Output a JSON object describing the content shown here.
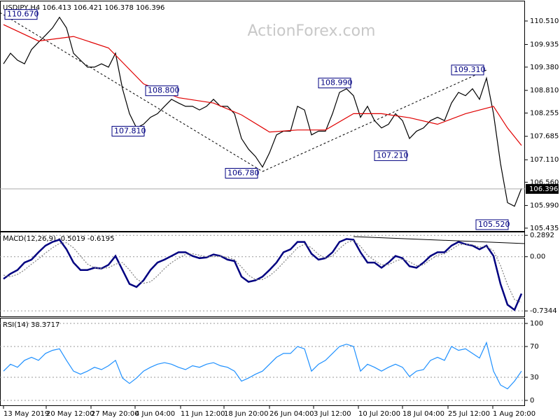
{
  "watermark": "ActionForex.com",
  "chart_data": [
    {
      "type": "line",
      "title": "USDJPY,H4  106.413 106.421 106.378 106.396",
      "xlim": [
        -0.5,
        74.5
      ],
      "ylim": [
        105.365,
        110.99
      ],
      "yticks": [
        {
          "value": 110.51,
          "label": "110.510"
        },
        109.935,
        {
          "value": 109.38,
          "label": "109.380"
        },
        {
          "value": 108.81,
          "label": "108.810"
        },
        108.255,
        107.685,
        {
          "value": 107.11,
          "label": "107.110"
        },
        {
          "value": 106.56,
          "label": "106.560"
        },
        {
          "value": 105.99,
          "label": "105.990"
        },
        105.435
      ],
      "grid": false,
      "series": [
        {
          "color": "#000000",
          "values": [
            109.46,
            109.72,
            109.55,
            109.46,
            109.81,
            109.99,
            110.16,
            110.34,
            110.6,
            110.34,
            109.72,
            109.55,
            109.38,
            109.38,
            109.46,
            109.38,
            109.72,
            108.85,
            108.24,
            107.89,
            107.98,
            108.15,
            108.24,
            108.42,
            108.59,
            108.5,
            108.42,
            108.42,
            108.33,
            108.42,
            108.59,
            108.42,
            108.42,
            108.24,
            107.63,
            107.37,
            107.19,
            106.93,
            107.28,
            107.72,
            107.81,
            107.81,
            108.42,
            108.33,
            107.72,
            107.81,
            107.81,
            108.24,
            108.76,
            108.85,
            108.68,
            108.15,
            108.42,
            108.07,
            107.89,
            107.98,
            108.24,
            108.07,
            107.63,
            107.81,
            107.89,
            108.07,
            108.15,
            108.07,
            108.5,
            108.76,
            108.68,
            108.85,
            108.59,
            109.11,
            108.24,
            107.02,
            106.06,
            105.97,
            106.41
          ]
        },
        {
          "color": "#e00000",
          "x": [
            0,
            5,
            10,
            15,
            20,
            25,
            30,
            34,
            38,
            42,
            46,
            50,
            54,
            58,
            62,
            66,
            70,
            72,
            74
          ],
          "values": [
            110.42,
            110.02,
            110.13,
            109.85,
            108.97,
            108.63,
            108.5,
            108.21,
            107.79,
            107.84,
            107.84,
            108.24,
            108.24,
            108.14,
            107.98,
            108.24,
            108.42,
            107.89,
            107.46
          ]
        }
      ],
      "last_price": 106.396,
      "annotations": [
        {
          "value": 110.67,
          "label": "110.670",
          "x": 0.2
        },
        {
          "value": 108.8,
          "label": "108.800",
          "x": 20.3
        },
        {
          "value": 107.81,
          "label": "107.810",
          "x": 15.5
        },
        {
          "value": 106.78,
          "label": "106.780",
          "x": 31.7
        },
        {
          "value": 108.99,
          "label": "108.990",
          "x": 45
        },
        {
          "value": 107.21,
          "label": "107.210",
          "x": 53
        },
        {
          "value": 109.31,
          "label": "109.310",
          "x": 64
        },
        {
          "value": 105.52,
          "label": "105.520",
          "x": 67.5
        }
      ]
    },
    {
      "type": "line",
      "title": "MACD(12,26,9) -0.5019 -0.6195",
      "xlim": [
        -0.5,
        74.5
      ],
      "ylim": [
        -0.818,
        0.329
      ],
      "yticks": [
        0.2892,
        {
          "value": 0,
          "label": "0.00"
        },
        -0.7344
      ],
      "grid": true,
      "series": [
        {
          "color": "#000080",
          "values": [
            -0.3,
            -0.23,
            -0.18,
            -0.08,
            -0.04,
            0.06,
            0.15,
            0.2,
            0.23,
            0.1,
            -0.08,
            -0.18,
            -0.18,
            -0.15,
            -0.16,
            -0.11,
            0.01,
            -0.18,
            -0.37,
            -0.41,
            -0.32,
            -0.18,
            -0.08,
            -0.04,
            0.01,
            0.06,
            0.06,
            0.01,
            -0.02,
            -0.01,
            0.03,
            0.01,
            -0.04,
            -0.06,
            -0.27,
            -0.34,
            -0.32,
            -0.27,
            -0.18,
            -0.08,
            0.06,
            0.1,
            0.2,
            0.2,
            0.04,
            -0.04,
            -0.02,
            0.06,
            0.2,
            0.24,
            0.23,
            0.06,
            -0.08,
            -0.08,
            -0.15,
            -0.08,
            0.01,
            -0.02,
            -0.13,
            -0.15,
            -0.08,
            0.01,
            0.06,
            0.06,
            0.15,
            0.2,
            0.17,
            0.15,
            0.1,
            0.15,
            0.01,
            -0.37,
            -0.65,
            -0.72,
            -0.5
          ]
        },
        {
          "color": "#808080",
          "dashed": true,
          "values": [
            -0.25,
            -0.27,
            -0.24,
            -0.18,
            -0.1,
            -0.03,
            0.05,
            0.12,
            0.18,
            0.19,
            0.12,
            0.01,
            -0.1,
            -0.15,
            -0.16,
            -0.15,
            -0.1,
            -0.08,
            -0.18,
            -0.3,
            -0.36,
            -0.34,
            -0.26,
            -0.16,
            -0.08,
            -0.02,
            0.03,
            0.04,
            0.02,
            0,
            0,
            0.01,
            -0.01,
            -0.04,
            -0.14,
            -0.25,
            -0.31,
            -0.31,
            -0.26,
            -0.18,
            -0.08,
            0.02,
            0.12,
            0.17,
            0.12,
            0.03,
            -0.02,
            0.01,
            0.11,
            0.19,
            0.22,
            0.14,
            0.02,
            -0.05,
            -0.11,
            -0.11,
            -0.06,
            -0.03,
            -0.07,
            -0.12,
            -0.11,
            -0.04,
            0.02,
            0.04,
            0.1,
            0.16,
            0.17,
            0.16,
            0.13,
            0.14,
            0.08,
            -0.12,
            -0.38,
            -0.58,
            -0.62
          ]
        }
      ]
    },
    {
      "type": "line",
      "title": "RSI(14) 38.3717",
      "xlim": [
        -0.5,
        74.5
      ],
      "ylim": [
        -7.3,
        106.4
      ],
      "yticks": [
        100,
        70,
        30,
        0
      ],
      "grid": true,
      "series": [
        {
          "color": "#1e90ff",
          "values": [
            38,
            47,
            43,
            52,
            56,
            52,
            61,
            65,
            67,
            52,
            38,
            34,
            38,
            43,
            40,
            45,
            52,
            29,
            22,
            29,
            38,
            43,
            47,
            49,
            47,
            43,
            40,
            45,
            43,
            47,
            49,
            45,
            43,
            38,
            25,
            29,
            34,
            38,
            47,
            56,
            61,
            61,
            70,
            67,
            38,
            47,
            52,
            61,
            70,
            73,
            70,
            38,
            47,
            43,
            38,
            43,
            47,
            43,
            31,
            38,
            40,
            52,
            56,
            52,
            70,
            65,
            67,
            61,
            55,
            75,
            38,
            20,
            15,
            25,
            38
          ]
        }
      ],
      "xticks": [
        {
          "value": 0,
          "label": "13 May 2019"
        },
        {
          "value": 6.1,
          "label": "20 May 12:00"
        },
        {
          "value": 12.5,
          "label": "27 May 20:00"
        },
        {
          "value": 18.8,
          "label": "4 Jun 04:00"
        },
        {
          "value": 25.3,
          "label": "11 Jun 12:00"
        },
        {
          "value": 31.5,
          "label": "18 Jun 20:00"
        },
        {
          "value": 38,
          "label": "26 Jun 04:00"
        },
        {
          "value": 44.3,
          "label": "3 Jul 12:00"
        },
        {
          "value": 50.7,
          "label": "10 Jul 20:00"
        },
        {
          "value": 57,
          "label": "18 Jul 04:00"
        },
        {
          "value": 63.5,
          "label": "25 Jul 12:00"
        },
        {
          "value": 69.9,
          "label": "1 Aug 20:00"
        }
      ]
    }
  ]
}
